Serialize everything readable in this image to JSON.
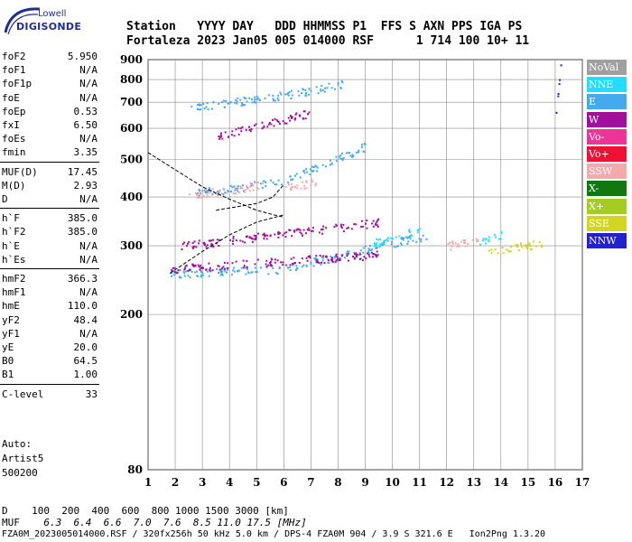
{
  "logo": {
    "line1": "Lowell",
    "line2": "DIGISONDE"
  },
  "header": {
    "line1": "Station   YYYY DAY   DDD HHMMSS P1  FFS S AXN PPS IGA PS",
    "line2": "Fortaleza 2023 Jan05 005 014000 RSF      1 714 100 10+ 11"
  },
  "params": [
    {
      "name": "foF2",
      "value": "5.950"
    },
    {
      "name": "foF1",
      "value": "N/A"
    },
    {
      "name": "foF1p",
      "value": "N/A"
    },
    {
      "name": "foE",
      "value": "N/A"
    },
    {
      "name": "foEp",
      "value": "0.53"
    },
    {
      "name": "fxI",
      "value": "6.50"
    },
    {
      "name": "foEs",
      "value": "N/A"
    },
    {
      "name": "fmin",
      "value": "3.35"
    },
    {
      "name": "MUF(D)",
      "value": "17.45"
    },
    {
      "name": "M(D)",
      "value": "2.93"
    },
    {
      "name": "D",
      "value": "N/A"
    },
    {
      "name": "h`F",
      "value": "385.0"
    },
    {
      "name": "h`F2",
      "value": "385.0"
    },
    {
      "name": "h`E",
      "value": "N/A"
    },
    {
      "name": "h`Es",
      "value": "N/A"
    },
    {
      "name": "hmF2",
      "value": "366.3"
    },
    {
      "name": "hmF1",
      "value": "N/A"
    },
    {
      "name": "hmE",
      "value": "110.0"
    },
    {
      "name": "yF2",
      "value": "48.4"
    },
    {
      "name": "yF1",
      "value": "N/A"
    },
    {
      "name": "yE",
      "value": "20.0"
    },
    {
      "name": "B0",
      "value": "64.5"
    },
    {
      "name": "B1",
      "value": "1.00"
    },
    {
      "name": "C-level",
      "value": "33"
    }
  ],
  "auto": {
    "line1": "Auto:",
    "line2": "Artist5",
    "line3": "500200"
  },
  "bottom": {
    "d_label": "D",
    "d_values": "    100  200  400  600  800 1000 1500 3000 [km]",
    "muf_label": "MUF",
    "muf_values": "    6.3  6.4  6.6  7.0  7.6  8.5 11.0 17.5 [MHz]",
    "footer": "FZA0M_2023005014000.RSF / 320fx256h 50 kHz 5.0 km / DPS-4 FZA0M 904 / 3.9 S 321.6 E   Ion2Png 1.3.20"
  },
  "legend": [
    {
      "label": "NoVal",
      "color": "#a0a0a0"
    },
    {
      "label": "NNE",
      "color": "#22ddff"
    },
    {
      "label": "E",
      "color": "#44aaee"
    },
    {
      "label": "W",
      "color": "#a0109a"
    },
    {
      "label": "Vo-",
      "color": "#ee3399"
    },
    {
      "label": "Vo+",
      "color": "#ee1133"
    },
    {
      "label": "SSW",
      "color": "#f4aaaa"
    },
    {
      "label": "X-",
      "color": "#117711"
    },
    {
      "label": "X+",
      "color": "#a4cc22"
    },
    {
      "label": "SSE",
      "color": "#d4d422"
    },
    {
      "label": "NNW",
      "color": "#2222cc"
    }
  ],
  "chart_data": {
    "type": "scatter",
    "title": "",
    "xlabel": "",
    "ylabel": "",
    "xlim": [
      1,
      17
    ],
    "ylim": [
      80,
      900
    ],
    "y_scale": "log",
    "grid": true,
    "x_ticks": [
      1,
      2,
      3,
      4,
      5,
      6,
      7,
      8,
      9,
      10,
      11,
      12,
      13,
      14,
      15,
      16,
      17
    ],
    "y_ticks": [
      80,
      200,
      300,
      400,
      500,
      600,
      700,
      800,
      900
    ],
    "series": [
      {
        "name": "E",
        "color": "#44aaee",
        "segments": [
          {
            "x_start": 1.8,
            "x_end": 6.0,
            "y_start": 255,
            "y_end": 262
          },
          {
            "x_start": 6.0,
            "x_end": 9.5,
            "y_start": 262,
            "y_end": 300
          },
          {
            "x_start": 9.5,
            "x_end": 11.3,
            "y_start": 300,
            "y_end": 320
          },
          {
            "x_start": 2.8,
            "x_end": 6.0,
            "y_start": 410,
            "y_end": 440
          },
          {
            "x_start": 6.0,
            "x_end": 9.0,
            "y_start": 440,
            "y_end": 540
          },
          {
            "x_start": 2.5,
            "x_end": 5.5,
            "y_start": 680,
            "y_end": 720
          },
          {
            "x_start": 5.5,
            "x_end": 8.2,
            "y_start": 720,
            "y_end": 780
          }
        ]
      },
      {
        "name": "W",
        "color": "#a0109a",
        "segments": [
          {
            "x_start": 1.8,
            "x_end": 9.5,
            "y_start": 262,
            "y_end": 285
          },
          {
            "x_start": 2.2,
            "x_end": 9.5,
            "y_start": 300,
            "y_end": 345
          },
          {
            "x_start": 3.5,
            "x_end": 7.0,
            "y_start": 570,
            "y_end": 660
          }
        ]
      },
      {
        "name": "SSW",
        "color": "#f4aaaa",
        "segments": [
          {
            "x_start": 2.5,
            "x_end": 5.2,
            "y_start": 405,
            "y_end": 430
          },
          {
            "x_start": 6.0,
            "x_end": 7.2,
            "y_start": 420,
            "y_end": 440
          },
          {
            "x_start": 12.0,
            "x_end": 13.3,
            "y_start": 300,
            "y_end": 315
          }
        ]
      },
      {
        "name": "NNE",
        "color": "#22ddff",
        "segments": [
          {
            "x_start": 9.3,
            "x_end": 11.0,
            "y_start": 305,
            "y_end": 330
          },
          {
            "x_start": 13.2,
            "x_end": 14.0,
            "y_start": 305,
            "y_end": 320
          }
        ]
      },
      {
        "name": "SSE",
        "color": "#d4d422",
        "segments": [
          {
            "x_start": 13.5,
            "x_end": 15.5,
            "y_start": 290,
            "y_end": 305
          }
        ]
      },
      {
        "name": "NNW",
        "color": "#2222cc",
        "segments": [
          {
            "x_start": 16.0,
            "x_end": 16.2,
            "y_start": 640,
            "y_end": 890
          }
        ]
      }
    ],
    "trace_curves": [
      {
        "points": [
          [
            1,
            520
          ],
          [
            2,
            470
          ],
          [
            3,
            425
          ],
          [
            4,
            395
          ],
          [
            5,
            370
          ],
          [
            5.5,
            362
          ],
          [
            6,
            355
          ]
        ]
      },
      {
        "points": [
          [
            1.8,
            255
          ],
          [
            3,
            290
          ],
          [
            4,
            320
          ],
          [
            5,
            345
          ],
          [
            6,
            360
          ]
        ]
      },
      {
        "points": [
          [
            3.5,
            370
          ],
          [
            4.5,
            380
          ],
          [
            5,
            385
          ],
          [
            5.6,
            400
          ],
          [
            6,
            430
          ]
        ]
      }
    ]
  }
}
